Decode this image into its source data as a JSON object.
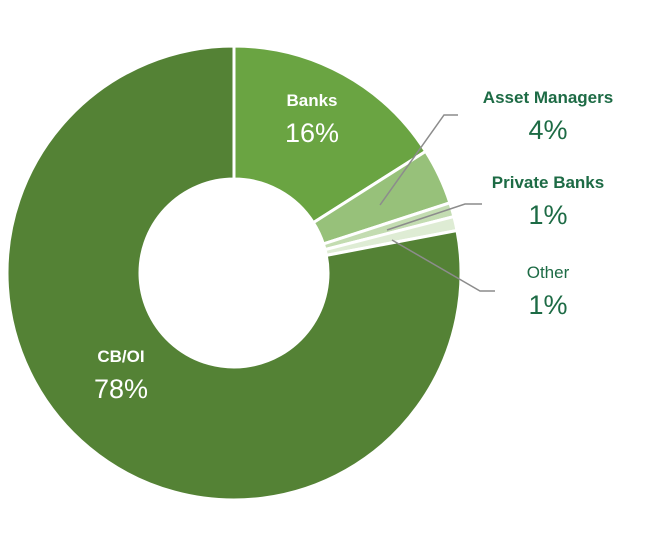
{
  "chart_data": {
    "type": "pie",
    "donut": true,
    "categories": [
      "Banks",
      "Asset Managers",
      "Private Banks",
      "Other",
      "CB/OI"
    ],
    "values": [
      16,
      4,
      1,
      1,
      78
    ],
    "labels": [
      "16%",
      "4%",
      "1%",
      "1%",
      "78%"
    ],
    "colors": [
      "#6aa442",
      "#97c17a",
      "#c3dcb1",
      "#deecd4",
      "#548235"
    ],
    "label_color": "#1d6b45"
  }
}
